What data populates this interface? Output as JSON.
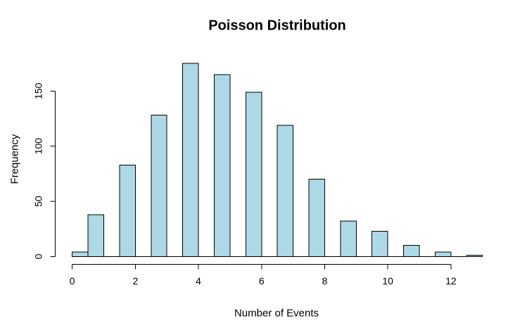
{
  "chart_data": {
    "type": "bar",
    "title": "Poisson Distribution",
    "xlabel": "Number of Events",
    "ylabel": "Frequency",
    "categories": [
      0,
      1,
      2,
      3,
      4,
      5,
      6,
      7,
      8,
      9,
      10,
      11,
      12,
      13
    ],
    "values": [
      4,
      38,
      83,
      128,
      175,
      165,
      149,
      119,
      70,
      32,
      23,
      10,
      4,
      1
    ],
    "bins": [
      {
        "x0": 0,
        "x1": 0.5,
        "count": 4
      },
      {
        "x0": 0.5,
        "x1": 1,
        "count": 38
      },
      {
        "x0": 1.5,
        "x1": 2,
        "count": 83
      },
      {
        "x0": 2.5,
        "x1": 3,
        "count": 128
      },
      {
        "x0": 3.5,
        "x1": 4,
        "count": 175
      },
      {
        "x0": 4.5,
        "x1": 5,
        "count": 165
      },
      {
        "x0": 5.5,
        "x1": 6,
        "count": 149
      },
      {
        "x0": 6.5,
        "x1": 7,
        "count": 119
      },
      {
        "x0": 7.5,
        "x1": 8,
        "count": 70
      },
      {
        "x0": 8.5,
        "x1": 9,
        "count": 32
      },
      {
        "x0": 9.5,
        "x1": 10,
        "count": 23
      },
      {
        "x0": 10.5,
        "x1": 11,
        "count": 10
      },
      {
        "x0": 11.5,
        "x1": 12,
        "count": 4
      },
      {
        "x0": 12.5,
        "x1": 13,
        "count": 1
      }
    ],
    "x_ticks": [
      0,
      2,
      4,
      6,
      8,
      10,
      12
    ],
    "y_ticks": [
      0,
      50,
      100,
      150
    ],
    "xlim": [
      0,
      13
    ],
    "ylim": [
      0,
      175
    ],
    "grid": false,
    "legend": null,
    "colors": {
      "bar_fill": "#ADD8E6",
      "bar_stroke": "#000000",
      "axis": "#000000",
      "text": "#000000",
      "background": "#FFFFFF"
    }
  }
}
